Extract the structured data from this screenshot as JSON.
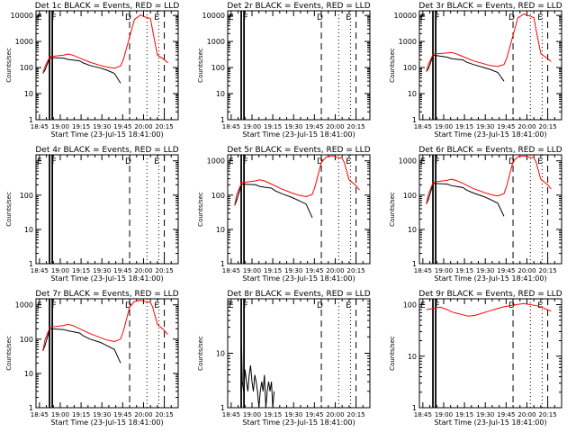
{
  "chart_data": [
    {
      "type": "line",
      "title": "Det 1c BLACK = Events, RED = LLD",
      "xlabel": "Start Time (23-Jul-15 18:41:00)",
      "ylabel": "Counts/sec",
      "scale": "log",
      "ylim": [
        1,
        15000
      ],
      "ytick_labels": [
        "1",
        "10",
        "100",
        "1000",
        "10000"
      ],
      "xtick_labels": [
        "18:45",
        "19:00",
        "19:15",
        "19:30",
        "19:45",
        "20:00",
        "20:15"
      ],
      "markers": [
        "E",
        "F",
        "D",
        "E"
      ],
      "series": [
        {
          "color": "#000000",
          "x": [
            0,
            0.3,
            1,
            3,
            3.6,
            4.3,
            5.3,
            5.8,
            6.8,
            8.3,
            9.2,
            10.3,
            11.2
          ],
          "y": [
            60,
            80,
            240,
            230,
            205,
            195,
            180,
            150,
            120,
            95,
            80,
            60,
            25
          ]
        },
        {
          "color": "#ff0000",
          "x": [
            0,
            0.3,
            1,
            3,
            3.6,
            4.3,
            5.3,
            6.8,
            8.3,
            9.2,
            10.3,
            11.2,
            11.6,
            12.5,
            13.2,
            14.1,
            14.5,
            14.9,
            15.5,
            15.8,
            16.5,
            17.5,
            18
          ],
          "y": [
            60,
            110,
            260,
            300,
            330,
            300,
            230,
            160,
            120,
            105,
            95,
            115,
            200,
            1500,
            7000,
            10500,
            9000,
            8500,
            7500,
            2800,
            300,
            200,
            150
          ]
        }
      ]
    },
    {
      "type": "line",
      "title": "Det 2r BLACK = Events, RED = LLD",
      "xlabel": "Start Time (23-Jul-15 18:41:00)",
      "ylabel": "Counts/sec",
      "scale": "log",
      "ylim": [
        1,
        15000
      ],
      "ytick_labels": [
        "1",
        "10",
        "100",
        "1000",
        "10000"
      ],
      "xtick_labels": [
        "18:45",
        "19:00",
        "19:15",
        "19:30",
        "19:45",
        "20:00",
        "20:15"
      ],
      "markers": [
        "E",
        "F",
        "D",
        "E"
      ],
      "series": []
    },
    {
      "type": "line",
      "title": "Det 3r BLACK = Events, RED = LLD",
      "xlabel": "Start Time (23-Jul-15 18:41:00)",
      "ylabel": "Counts/sec",
      "scale": "log",
      "ylim": [
        1,
        15000
      ],
      "ytick_labels": [
        "1",
        "10",
        "100",
        "1000",
        "10000"
      ],
      "xtick_labels": [
        "18:45",
        "19:00",
        "19:15",
        "19:30",
        "19:45",
        "20:00",
        "20:15"
      ],
      "markers": [
        "E",
        "F",
        "D",
        "E"
      ],
      "series": [
        {
          "color": "#000000",
          "x": [
            0,
            0.3,
            1,
            3,
            3.6,
            4.3,
            5.3,
            5.8,
            6.8,
            8.3,
            9.2,
            10.3,
            11.2
          ],
          "y": [
            70,
            90,
            300,
            250,
            220,
            210,
            195,
            160,
            130,
            100,
            85,
            65,
            30
          ]
        },
        {
          "color": "#ff0000",
          "x": [
            0,
            0.3,
            1,
            3,
            3.6,
            4.3,
            5.3,
            6.8,
            8.3,
            9.2,
            10.3,
            11.2,
            11.6,
            12.5,
            13.2,
            14.1,
            14.5,
            14.9,
            15.5,
            15.8,
            16.5,
            17.5,
            18
          ],
          "y": [
            70,
            130,
            330,
            360,
            380,
            340,
            260,
            180,
            140,
            120,
            110,
            130,
            230,
            1700,
            8000,
            11500,
            10000,
            9500,
            8200,
            3000,
            340,
            220,
            170
          ]
        }
      ]
    },
    {
      "type": "line",
      "title": "Det 4r BLACK = Events, RED = LLD",
      "xlabel": "Start Time (23-Jul-15 18:41:00)",
      "ylabel": "Counts/sec",
      "scale": "log",
      "ylim": [
        1,
        1500
      ],
      "ytick_labels": [
        "1",
        "10",
        "100"
      ],
      "xtick_labels": [
        "18:45",
        "19:00",
        "19:15",
        "19:30",
        "19:45",
        "20:00",
        "20:15"
      ],
      "markers": [
        "E",
        "F",
        "D",
        "E"
      ],
      "series": []
    },
    {
      "type": "line",
      "title": "Det 5r BLACK = Events, RED = LLD",
      "xlabel": "Start Time (23-Jul-15 18:41:00)",
      "ylabel": "Counts/sec",
      "scale": "log",
      "ylim": [
        1,
        1500
      ],
      "ytick_labels": [
        "1",
        "10",
        "100",
        "1000"
      ],
      "xtick_labels": [
        "18:45",
        "19:00",
        "19:15",
        "19:30",
        "19:45",
        "20:00",
        "20:15"
      ],
      "markers": [
        "E",
        "F",
        "D",
        "E"
      ],
      "series": [
        {
          "color": "#000000",
          "x": [
            0,
            0.3,
            1,
            3,
            3.6,
            4.3,
            5.3,
            5.8,
            6.8,
            8.3,
            9.2,
            10.3,
            11.2
          ],
          "y": [
            50,
            70,
            210,
            200,
            180,
            170,
            160,
            135,
            110,
            85,
            70,
            55,
            22
          ]
        },
        {
          "color": "#ff0000",
          "x": [
            0,
            0.3,
            1,
            3,
            3.6,
            4.3,
            5.3,
            6.8,
            8.3,
            9.2,
            10.3,
            11.2,
            11.6,
            12.5,
            13.2,
            14.1,
            14.5,
            14.9,
            15.5,
            15.8,
            16.5,
            17.5,
            18
          ],
          "y": [
            50,
            100,
            230,
            260,
            280,
            260,
            210,
            150,
            115,
            100,
            90,
            105,
            180,
            900,
            1300,
            1400,
            1300,
            1250,
            1200,
            900,
            280,
            190,
            140
          ]
        }
      ]
    },
    {
      "type": "line",
      "title": "Det 6r BLACK = Events, RED = LLD",
      "xlabel": "Start Time (23-Jul-15 18:41:00)",
      "ylabel": "Counts/sec",
      "scale": "log",
      "ylim": [
        1,
        1500
      ],
      "ytick_labels": [
        "1",
        "10",
        "100",
        "1000"
      ],
      "xtick_labels": [
        "18:45",
        "19:00",
        "19:15",
        "19:30",
        "19:45",
        "20:00",
        "20:15"
      ],
      "markers": [
        "E",
        "F",
        "D",
        "E"
      ],
      "series": [
        {
          "color": "#000000",
          "x": [
            0,
            0.3,
            1,
            3,
            3.6,
            4.3,
            5.3,
            5.8,
            6.8,
            8.3,
            9.2,
            10.3,
            11.2
          ],
          "y": [
            55,
            75,
            220,
            210,
            190,
            180,
            165,
            140,
            115,
            90,
            75,
            58,
            24
          ]
        },
        {
          "color": "#ff0000",
          "x": [
            0,
            0.3,
            1,
            3,
            3.6,
            4.3,
            5.3,
            6.8,
            8.3,
            9.2,
            10.3,
            11.2,
            11.6,
            12.5,
            13.2,
            14.1,
            14.5,
            14.9,
            15.5,
            15.8,
            16.5,
            17.5,
            18
          ],
          "y": [
            55,
            105,
            240,
            270,
            290,
            270,
            220,
            155,
            120,
            105,
            95,
            110,
            190,
            950,
            1300,
            1400,
            1320,
            1280,
            1220,
            950,
            290,
            200,
            150
          ]
        }
      ]
    },
    {
      "type": "line",
      "title": "Det 7r BLACK = Events, RED = LLD",
      "xlabel": "Start Time (23-Jul-15 18:41:00)",
      "ylabel": "Counts/sec",
      "scale": "log",
      "ylim": [
        1,
        1500
      ],
      "ytick_labels": [
        "1",
        "10",
        "100",
        "1000"
      ],
      "xtick_labels": [
        "18:45",
        "19:00",
        "19:15",
        "19:30",
        "19:45",
        "20:00",
        "20:15"
      ],
      "markers": [
        "E",
        "F",
        "D",
        "E"
      ],
      "series": [
        {
          "color": "#000000",
          "x": [
            0,
            0.3,
            1,
            3,
            3.6,
            4.3,
            5.3,
            5.8,
            6.8,
            8.3,
            9.2,
            10.3,
            11.2
          ],
          "y": [
            45,
            65,
            200,
            190,
            175,
            165,
            150,
            125,
            100,
            80,
            65,
            50,
            20
          ]
        },
        {
          "color": "#ff0000",
          "x": [
            0,
            0.3,
            1,
            3,
            3.6,
            4.3,
            5.3,
            6.8,
            8.3,
            9.2,
            10.3,
            11.2,
            11.6,
            12.5,
            13.2,
            14.1,
            14.5,
            14.9,
            15.5,
            15.8,
            16.5,
            17.5,
            18
          ],
          "y": [
            45,
            95,
            220,
            250,
            270,
            250,
            200,
            145,
            110,
            95,
            85,
            100,
            170,
            850,
            1250,
            1350,
            1280,
            1230,
            1180,
            880,
            270,
            180,
            135
          ]
        }
      ]
    },
    {
      "type": "line",
      "title": "Det 8r BLACK = Events, RED = LLD",
      "xlabel": "Start Time (23-Jul-15 18:41:00)",
      "ylabel": "Counts/sec",
      "scale": "log",
      "ylim": [
        1,
        100
      ],
      "ytick_labels": [
        "1",
        "10"
      ],
      "xtick_labels": [
        "18:45",
        "19:00",
        "19:15",
        "19:30",
        "19:45",
        "20:00",
        "20:15"
      ],
      "markers": [
        "E",
        "F",
        "D",
        "E"
      ],
      "series": [
        {
          "color": "#000000",
          "x": [
            0.9,
            1.0,
            1.1,
            1.3,
            1.5,
            1.7,
            1.9,
            2.1,
            2.3,
            2.5,
            2.7,
            2.9,
            3.1,
            3.3,
            3.5,
            3.7,
            3.9,
            4.1,
            4.3,
            4.5,
            4.7,
            4.9,
            5.1,
            5.3,
            5.5,
            5.7
          ],
          "y": [
            2,
            14,
            3,
            2,
            5,
            3,
            2,
            4,
            6,
            3,
            2,
            4,
            3,
            2,
            1,
            2,
            3,
            2,
            4,
            1,
            2,
            3,
            2,
            3,
            1,
            2
          ]
        }
      ]
    },
    {
      "type": "line",
      "title": "Det 9r BLACK = Events, RED = LLD",
      "xlabel": "Start Time (23-Jul-15 18:41:00)",
      "ylabel": "Counts/sec",
      "scale": "log",
      "ylim": [
        1,
        130
      ],
      "ytick_labels": [
        "1",
        "10",
        "100"
      ],
      "xtick_labels": [
        "18:45",
        "19:00",
        "19:15",
        "19:30",
        "19:45",
        "20:00",
        "20:15"
      ],
      "markers": [
        "E",
        "F",
        "D",
        "E"
      ],
      "series": [
        {
          "color": "#ff0000",
          "x": [
            0,
            1,
            2,
            3,
            4,
            5,
            6,
            7,
            8,
            9,
            10,
            11,
            12,
            13,
            14,
            15,
            16,
            17,
            18
          ],
          "y": [
            80,
            85,
            90,
            80,
            70,
            65,
            60,
            62,
            68,
            75,
            82,
            90,
            95,
            100,
            105,
            100,
            95,
            85,
            75
          ]
        }
      ]
    }
  ]
}
